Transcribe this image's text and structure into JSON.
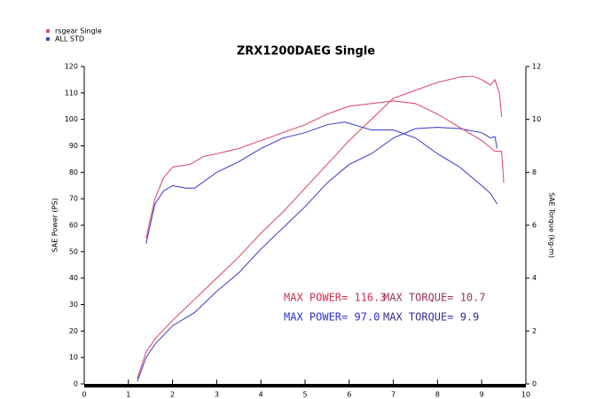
{
  "chart_data": {
    "type": "line",
    "title": "ZRX1200DAEG Single",
    "y_label": "SAE Power (PS)",
    "y2_label": "SAE Torque (kg-m)",
    "xlim": [
      0,
      10
    ],
    "xticks": [
      0,
      1,
      2,
      3,
      4,
      5,
      6,
      7,
      8,
      9,
      10
    ],
    "ylim": [
      0,
      120
    ],
    "yticks": [
      0,
      10,
      20,
      30,
      40,
      50,
      60,
      70,
      80,
      90,
      100,
      110,
      120
    ],
    "y2lim": [
      0,
      12
    ],
    "y2ticks": [
      0,
      2,
      4,
      6,
      8,
      10,
      12
    ],
    "series": [
      {
        "name": "rsgear Single",
        "color": "#e05070",
        "x": [
          1.2,
          1.4,
          1.6,
          2.0,
          2.5,
          3.0,
          3.5,
          4.0,
          4.5,
          5.0,
          5.5,
          6.0,
          6.5,
          7.0,
          7.5,
          8.0,
          8.5,
          8.8,
          9.0,
          9.2,
          9.3,
          9.4,
          9.45
        ],
        "values": [
          2,
          12,
          17,
          24,
          32,
          40,
          48,
          57,
          65,
          74,
          83,
          92,
          100,
          108,
          111,
          114,
          116,
          116.3,
          115,
          113,
          115,
          110,
          101
        ]
      },
      {
        "name": "ALL STD",
        "color": "#4a4ad0",
        "x": [
          1.2,
          1.4,
          1.6,
          2.0,
          2.5,
          3.0,
          3.5,
          4.0,
          4.5,
          5.0,
          5.5,
          6.0,
          6.5,
          7.0,
          7.5,
          8.0,
          8.5,
          9.0,
          9.2,
          9.3,
          9.35
        ],
        "values": [
          1,
          10,
          15,
          22,
          27,
          35,
          42,
          51,
          59,
          67,
          76,
          83,
          87,
          93,
          96.5,
          97,
          96.5,
          95,
          93,
          93.5,
          89
        ]
      },
      {
        "color": "#e05070",
        "axis": "y2",
        "x": [
          1.4,
          1.6,
          1.8,
          2.0,
          2.4,
          2.7,
          3.0,
          3.5,
          4.0,
          4.5,
          5.0,
          5.5,
          6.0,
          6.5,
          7.0,
          7.5,
          8.0,
          8.5,
          9.0,
          9.3,
          9.45,
          9.5
        ],
        "values": [
          5.5,
          7.0,
          7.8,
          8.2,
          8.3,
          8.6,
          8.7,
          8.9,
          9.2,
          9.5,
          9.8,
          10.2,
          10.5,
          10.6,
          10.7,
          10.6,
          10.2,
          9.7,
          9.2,
          8.8,
          8.8,
          7.6
        ]
      },
      {
        "color": "#4a4ad0",
        "axis": "y2",
        "x": [
          1.4,
          1.6,
          1.8,
          2.0,
          2.3,
          2.5,
          3.0,
          3.5,
          4.0,
          4.5,
          5.0,
          5.5,
          5.9,
          6.5,
          7.0,
          7.5,
          8.0,
          8.5,
          9.0,
          9.2,
          9.35
        ],
        "values": [
          5.3,
          6.8,
          7.3,
          7.5,
          7.4,
          7.4,
          8.0,
          8.4,
          8.9,
          9.3,
          9.5,
          9.8,
          9.9,
          9.6,
          9.6,
          9.3,
          8.7,
          8.2,
          7.5,
          7.2,
          6.8
        ]
      }
    ],
    "annotations": [
      {
        "text": "MAX POWER= 116.3",
        "color": "#d03050"
      },
      {
        "text": "MAX TORQUE= 10.7",
        "color": "#a03060"
      },
      {
        "text": "MAX POWER= 97.0",
        "color": "#3030d0"
      },
      {
        "text": "MAX TORQUE= 9.9",
        "color": "#303090"
      }
    ]
  }
}
